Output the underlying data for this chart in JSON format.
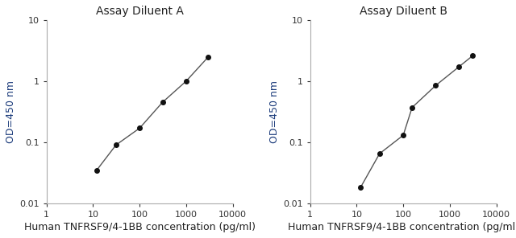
{
  "chart_a": {
    "title": "Assay Diluent A",
    "x": [
      12,
      31,
      100,
      310,
      1000,
      3000
    ],
    "y": [
      0.035,
      0.09,
      0.17,
      0.45,
      1.0,
      2.5
    ]
  },
  "chart_b": {
    "title": "Assay Diluent B",
    "x": [
      12,
      31,
      100,
      155,
      500,
      1550,
      3100
    ],
    "y": [
      0.018,
      0.065,
      0.13,
      0.37,
      0.85,
      1.7,
      2.6
    ]
  },
  "xlabel": "Human TNFRSF9/4-1BB concentration (pg/ml)",
  "ylabel": "OD=450 nm",
  "xlim": [
    1,
    10000
  ],
  "ylim": [
    0.01,
    10
  ],
  "xticks": [
    1,
    10,
    100,
    1000,
    10000
  ],
  "yticks": [
    0.01,
    0.1,
    1,
    10
  ],
  "line_color": "#555555",
  "marker_color": "#111111",
  "title_color": "#222222",
  "xlabel_color": "#222222",
  "ylabel_color": "#1a3a7a",
  "tick_color": "#333333",
  "spine_color": "#aaaaaa",
  "background_color": "#ffffff",
  "title_fontsize": 10,
  "label_fontsize": 9,
  "tick_fontsize": 8
}
